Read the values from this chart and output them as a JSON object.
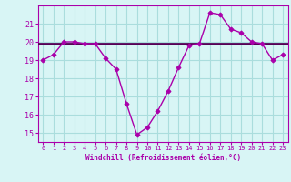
{
  "xlabel": "Windchill (Refroidissement éolien,°C)",
  "x_values": [
    0,
    1,
    2,
    3,
    4,
    5,
    6,
    7,
    8,
    9,
    10,
    11,
    12,
    13,
    14,
    15,
    16,
    17,
    18,
    19,
    20,
    21,
    22,
    23
  ],
  "y_line": [
    19.0,
    19.3,
    20.0,
    20.0,
    19.9,
    19.9,
    19.1,
    18.5,
    16.6,
    14.9,
    15.3,
    16.2,
    17.3,
    18.6,
    19.8,
    19.9,
    21.6,
    21.5,
    20.7,
    20.5,
    20.0,
    19.9,
    19.0,
    19.3
  ],
  "y_flat": 19.9,
  "line_color": "#aa00aa",
  "flat_color": "#550055",
  "bg_color": "#d8f5f5",
  "grid_color": "#aadddd",
  "axis_color": "#aa00aa",
  "tick_color": "#aa00aa",
  "ylim": [
    14.5,
    22.0
  ],
  "yticks": [
    15,
    16,
    17,
    18,
    19,
    20,
    21
  ],
  "xlim": [
    -0.5,
    23.5
  ],
  "xticks": [
    0,
    1,
    2,
    3,
    4,
    5,
    6,
    7,
    8,
    9,
    10,
    11,
    12,
    13,
    14,
    15,
    16,
    17,
    18,
    19,
    20,
    21,
    22,
    23
  ]
}
